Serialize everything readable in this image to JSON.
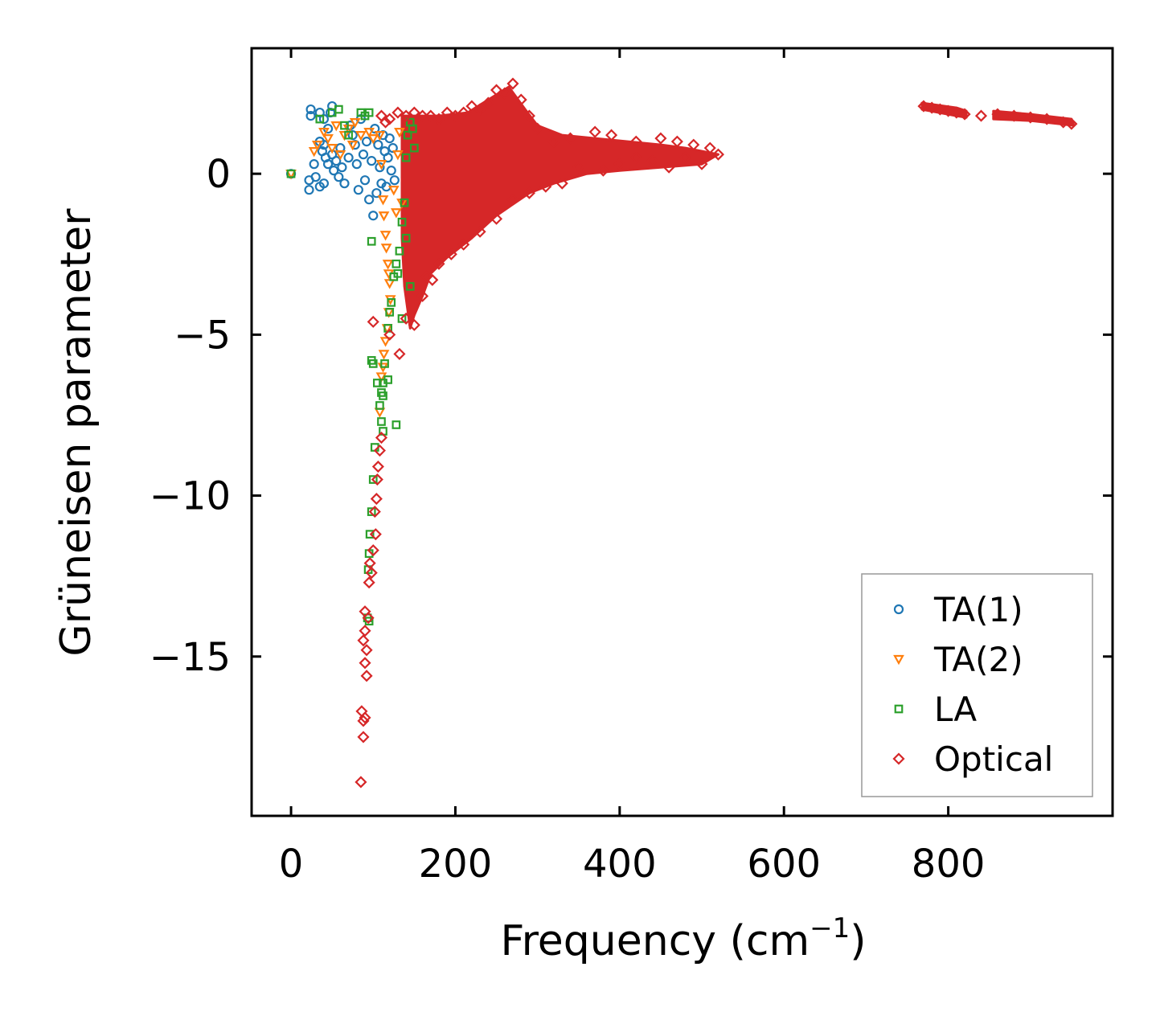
{
  "chart_data": {
    "type": "scatter",
    "title": "",
    "xlabel": "Frequency (cm",
    "xlabel_sup": "−1",
    "xlabel_close": ")",
    "ylabel": "Grüneisen parameter",
    "xlim": [
      -48,
      1000
    ],
    "ylim": [
      -19.95,
      3.9
    ],
    "xticks": [
      0,
      200,
      400,
      600,
      800
    ],
    "xtick_labels": [
      "0",
      "200",
      "400",
      "600",
      "800"
    ],
    "yticks": [
      0,
      -5,
      -10,
      -15
    ],
    "ytick_labels": [
      "0",
      "−5",
      "−10",
      "−15"
    ],
    "grid": false,
    "legend_position": "bottom-right",
    "series": [
      {
        "name": "TA(1)",
        "marker": "circle",
        "color": "#1f77b4",
        "points": [
          [
            0,
            0
          ],
          [
            24,
            2
          ],
          [
            24,
            1.8
          ],
          [
            22,
            -0.2
          ],
          [
            22,
            -0.5
          ],
          [
            35,
            1.9
          ],
          [
            40,
            1.7
          ],
          [
            45,
            1.4
          ],
          [
            48,
            1.9
          ],
          [
            50,
            2.1
          ],
          [
            35,
            1
          ],
          [
            38,
            0.7
          ],
          [
            40,
            0.9
          ],
          [
            42,
            0.5
          ],
          [
            45,
            0.3
          ],
          [
            50,
            0.6
          ],
          [
            52,
            0.1
          ],
          [
            55,
            0.4
          ],
          [
            58,
            -0.1
          ],
          [
            60,
            0.8
          ],
          [
            62,
            0.2
          ],
          [
            65,
            -0.3
          ],
          [
            70,
            0.5
          ],
          [
            72,
            1.5
          ],
          [
            75,
            1.2
          ],
          [
            78,
            0.9
          ],
          [
            80,
            0.3
          ],
          [
            82,
            -0.5
          ],
          [
            85,
            1.7
          ],
          [
            88,
            0.6
          ],
          [
            90,
            -0.2
          ],
          [
            92,
            1
          ],
          [
            95,
            -0.8
          ],
          [
            98,
            0.4
          ],
          [
            100,
            -1.3
          ],
          [
            102,
            1.4
          ],
          [
            104,
            -0.6
          ],
          [
            106,
            0.9
          ],
          [
            108,
            0.2
          ],
          [
            110,
            -0.3
          ],
          [
            112,
            1.2
          ],
          [
            114,
            0.7
          ],
          [
            116,
            -0.4
          ],
          [
            118,
            0.5
          ],
          [
            120,
            1.1
          ],
          [
            122,
            0.1
          ],
          [
            124,
            0.8
          ],
          [
            126,
            -0.2
          ],
          [
            35,
            -0.4
          ],
          [
            40,
            -0.3
          ],
          [
            30,
            -0.1
          ],
          [
            28,
            0.3
          ]
        ]
      },
      {
        "name": "TA(2)",
        "marker": "triangle",
        "color": "#ff7f0e",
        "points": [
          [
            0,
            0
          ],
          [
            28,
            0.7
          ],
          [
            32,
            0.9
          ],
          [
            40,
            1.3
          ],
          [
            45,
            1.1
          ],
          [
            50,
            0.8
          ],
          [
            55,
            1.5
          ],
          [
            60,
            0.6
          ],
          [
            65,
            1.2
          ],
          [
            70,
            1.4
          ],
          [
            75,
            0.9
          ],
          [
            78,
            1.6
          ],
          [
            85,
            1.2
          ],
          [
            95,
            1.3
          ],
          [
            100,
            1.1
          ],
          [
            108,
            1.2
          ],
          [
            110,
            0.3
          ],
          [
            112,
            -0.8
          ],
          [
            113,
            -1.3
          ],
          [
            115,
            -1.9
          ],
          [
            116,
            -2.3
          ],
          [
            118,
            -2.8
          ],
          [
            119,
            -3.1
          ],
          [
            120,
            -3.4
          ],
          [
            121,
            -3.9
          ],
          [
            119,
            -4.3
          ],
          [
            117,
            -4.8
          ],
          [
            115,
            -5.2
          ],
          [
            113,
            -5.6
          ],
          [
            112,
            -6
          ],
          [
            110,
            -6.3
          ],
          [
            108,
            -7.4
          ],
          [
            125,
            -0.5
          ],
          [
            128,
            -1.2
          ],
          [
            130,
            0.6
          ],
          [
            132,
            1.3
          ],
          [
            135,
            -0.9
          ]
        ]
      },
      {
        "name": "LA",
        "marker": "square",
        "color": "#2ca02c",
        "points": [
          [
            0,
            0
          ],
          [
            35,
            1.7
          ],
          [
            50,
            1.9
          ],
          [
            58,
            2
          ],
          [
            65,
            1.5
          ],
          [
            70,
            1.2
          ],
          [
            85,
            1.9
          ],
          [
            90,
            1.8
          ],
          [
            95,
            1.9
          ],
          [
            98,
            -2.1
          ],
          [
            98,
            -5.8
          ],
          [
            100,
            -5.9
          ],
          [
            105,
            -6.5
          ],
          [
            108,
            -7.2
          ],
          [
            110,
            -7.7
          ],
          [
            112,
            -8
          ],
          [
            102,
            -8.5
          ],
          [
            100,
            -9.5
          ],
          [
            98,
            -10.5
          ],
          [
            96,
            -11.2
          ],
          [
            95,
            -11.8
          ],
          [
            94,
            -12.3
          ],
          [
            93,
            -13.8
          ],
          [
            95,
            -13.9
          ],
          [
            110,
            -6.8
          ],
          [
            112,
            -6.5
          ],
          [
            114,
            -5.9
          ],
          [
            118,
            -4.8
          ],
          [
            120,
            -4.3
          ],
          [
            122,
            -4
          ],
          [
            125,
            -3.2
          ],
          [
            128,
            -2.8
          ],
          [
            132,
            -2.4
          ],
          [
            135,
            -1.5
          ],
          [
            138,
            -0.9
          ],
          [
            140,
            0.5
          ],
          [
            142,
            1.2
          ],
          [
            145,
            1.6
          ],
          [
            148,
            1.4
          ],
          [
            150,
            0.8
          ],
          [
            130,
            -3.1
          ],
          [
            128,
            -7.8
          ],
          [
            145,
            -3.5
          ],
          [
            140,
            -2
          ],
          [
            135,
            -4.5
          ],
          [
            118,
            -6.4
          ],
          [
            112,
            -6.9
          ]
        ]
      },
      {
        "name": "Optical",
        "marker": "diamond",
        "color": "#d62728",
        "points": [
          [
            100,
            -4.6
          ],
          [
            132,
            -5.6
          ],
          [
            85,
            -18.9
          ],
          [
            88,
            -17.5
          ],
          [
            88,
            -17
          ],
          [
            90,
            -16.9
          ],
          [
            86,
            -16.7
          ],
          [
            92,
            -15.6
          ],
          [
            90,
            -15.2
          ],
          [
            92,
            -14.8
          ],
          [
            88,
            -14.5
          ],
          [
            90,
            -14.2
          ],
          [
            94,
            -13.8
          ],
          [
            90,
            -13.6
          ],
          [
            95,
            -12.7
          ],
          [
            98,
            -12.4
          ],
          [
            96,
            -12.1
          ],
          [
            100,
            -11.7
          ],
          [
            103,
            -11.2
          ],
          [
            102,
            -10.5
          ],
          [
            104,
            -10.1
          ],
          [
            105,
            -9.5
          ],
          [
            106,
            -9.1
          ],
          [
            108,
            -8.6
          ],
          [
            110,
            -8.2
          ],
          [
            120,
            -5
          ],
          [
            140,
            -4.5
          ],
          [
            150,
            -4.7
          ],
          [
            160,
            -3.8
          ],
          [
            165,
            -3.2
          ],
          [
            172,
            -3.3
          ],
          [
            180,
            -2.8
          ],
          [
            195,
            -2.5
          ],
          [
            210,
            -2.2
          ],
          [
            230,
            -1.8
          ],
          [
            250,
            -1.4
          ],
          [
            270,
            -0.8
          ],
          [
            290,
            -0.6
          ],
          [
            310,
            -0.4
          ],
          [
            330,
            -0.3
          ],
          [
            350,
            0.2
          ],
          [
            380,
            0.1
          ],
          [
            400,
            0.3
          ],
          [
            420,
            0.5
          ],
          [
            440,
            0.4
          ],
          [
            460,
            0.2
          ],
          [
            480,
            0.5
          ],
          [
            500,
            0.3
          ],
          [
            520,
            0.6
          ],
          [
            510,
            0.8
          ],
          [
            490,
            0.9
          ],
          [
            470,
            1
          ],
          [
            450,
            1.1
          ],
          [
            420,
            1
          ],
          [
            390,
            1.2
          ],
          [
            370,
            1.3
          ],
          [
            340,
            1.1
          ],
          [
            320,
            1
          ],
          [
            300,
            1.4
          ],
          [
            290,
            1.8
          ],
          [
            280,
            2.3
          ],
          [
            270,
            2.8
          ],
          [
            260,
            2.5
          ],
          [
            250,
            2.6
          ],
          [
            240,
            2.2
          ],
          [
            230,
            2
          ],
          [
            220,
            2.1
          ],
          [
            210,
            1.9
          ],
          [
            200,
            1.8
          ],
          [
            190,
            1.9
          ],
          [
            180,
            1.7
          ],
          [
            170,
            1.8
          ],
          [
            160,
            1.8
          ],
          [
            150,
            1.9
          ],
          [
            140,
            1.8
          ],
          [
            130,
            1.9
          ],
          [
            120,
            1.7
          ],
          [
            115,
            1.6
          ],
          [
            110,
            1.8
          ],
          [
            770,
            2.1
          ],
          [
            780,
            2.05
          ],
          [
            790,
            2.0
          ],
          [
            800,
            1.95
          ],
          [
            810,
            1.9
          ],
          [
            820,
            1.85
          ],
          [
            840,
            1.8
          ],
          [
            860,
            1.85
          ],
          [
            880,
            1.8
          ],
          [
            900,
            1.75
          ],
          [
            920,
            1.7
          ],
          [
            940,
            1.6
          ],
          [
            950,
            1.55
          ]
        ]
      }
    ]
  }
}
